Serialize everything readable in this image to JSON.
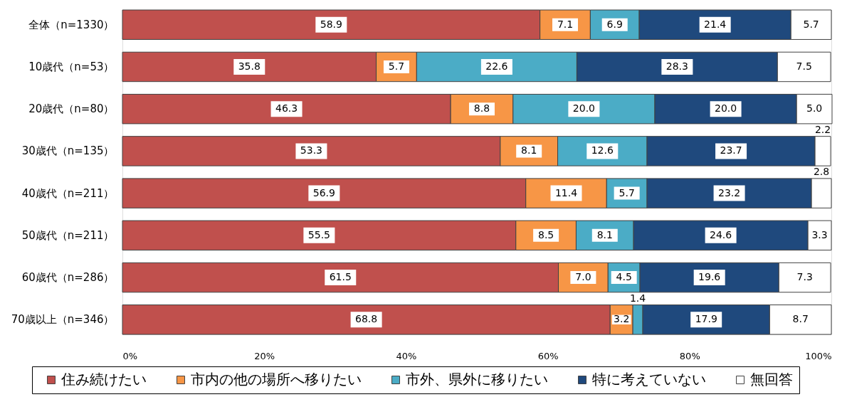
{
  "chart_data": {
    "type": "bar",
    "orientation": "horizontal",
    "stacked": true,
    "categories": [
      "全体（n=1330）",
      "10歳代（n=53）",
      "20歳代（n=80）",
      "30歳代（n=135）",
      "40歳代（n=211）",
      "50歳代（n=211）",
      "60歳代（n=286）",
      "70歳以上（n=346）"
    ],
    "series": [
      {
        "name": "住み続けたい",
        "color": "#c0504d",
        "values": [
          58.9,
          35.8,
          46.3,
          53.3,
          56.9,
          55.5,
          61.5,
          68.8
        ],
        "value_labels": [
          "58.9",
          "35.8",
          "46.3",
          "53.3",
          "56.9",
          "55.5",
          "61.5",
          "68.8"
        ]
      },
      {
        "name": "市内の他の場所へ移りたい",
        "color": "#f79646",
        "values": [
          7.1,
          5.7,
          8.8,
          8.1,
          11.4,
          8.5,
          7.0,
          3.2
        ],
        "value_labels": [
          "7.1",
          "5.7",
          "8.8",
          "8.1",
          "11.4",
          "8.5",
          "7.0",
          "3.2"
        ]
      },
      {
        "name": "市外、県外に移りたい",
        "color": "#4bacc6",
        "values": [
          6.9,
          22.6,
          20.0,
          12.6,
          5.7,
          8.1,
          4.5,
          1.4
        ],
        "value_labels": [
          "6.9",
          "22.6",
          "20.0",
          "12.6",
          "5.7",
          "8.1",
          "4.5",
          "1.4"
        ]
      },
      {
        "name": "特に考えていない",
        "color": "#1f497d",
        "values": [
          21.4,
          28.3,
          20.0,
          23.7,
          23.2,
          24.6,
          19.6,
          17.9
        ],
        "value_labels": [
          "21.4",
          "28.3",
          "20.0",
          "23.7",
          "23.2",
          "24.6",
          "19.6",
          "17.9"
        ]
      },
      {
        "name": "無回答",
        "color": "#ffffff",
        "values": [
          5.7,
          7.5,
          5.0,
          2.2,
          2.8,
          3.3,
          7.3,
          8.7
        ],
        "value_labels": [
          "5.7",
          "7.5",
          "5.0",
          "2.2",
          "2.8",
          "3.3",
          "7.3",
          "8.7"
        ]
      }
    ],
    "xlim": [
      0,
      100
    ],
    "xticks": [
      {
        "value": 0,
        "label": "0%"
      },
      {
        "value": 20,
        "label": "20%"
      },
      {
        "value": 40,
        "label": "40%"
      },
      {
        "value": 60,
        "label": "60%"
      },
      {
        "value": 80,
        "label": "80%"
      },
      {
        "value": 100,
        "label": "100%"
      }
    ],
    "legend": "bottom"
  }
}
